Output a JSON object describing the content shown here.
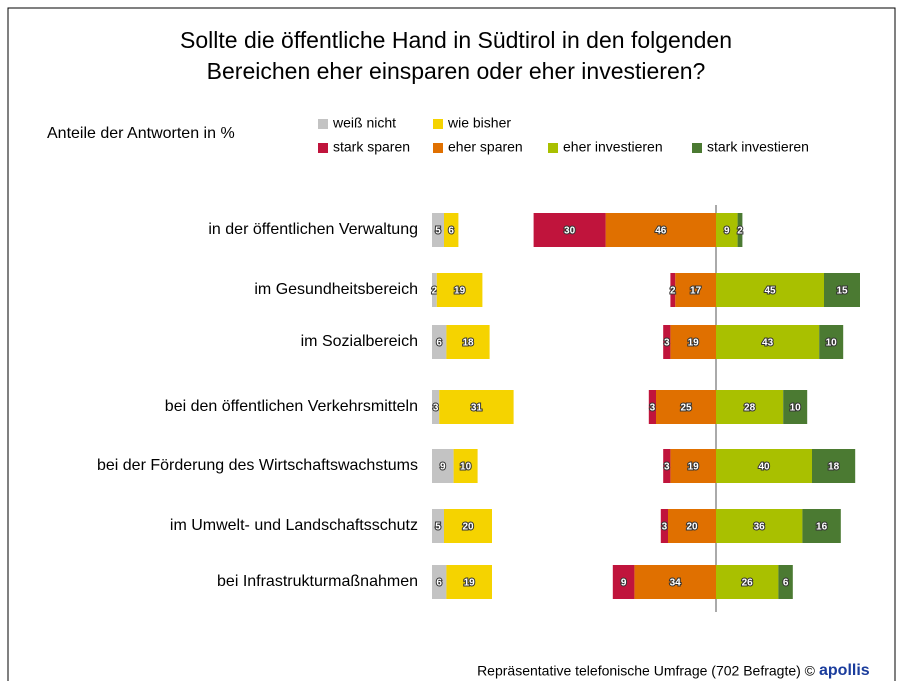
{
  "chart_data": {
    "type": "diverging-bar",
    "title": [
      "Sollte die öffentliche Hand in Südtirol in den folgenden",
      "Bereichen eher einsparen oder eher investieren?"
    ],
    "subtitle": "Anteile der Antworten in %",
    "source": "Repräsentative telefonische Umfrage (702 Befragte) ©",
    "logo": "apollis",
    "categories": [
      "in der öffentlichen Verwaltung",
      "im Gesundheitsbereich",
      "im Sozialbereich",
      "bei den öffentlichen Verkehrsmitteln",
      "bei der Förderung des Wirtschaftswachstums",
      "im Umwelt- und Landschaftsschutz",
      "bei Infrastrukturmaßnahmen"
    ],
    "series": [
      {
        "name": "weiß nicht",
        "color": "#c3c3c3",
        "values": [
          5,
          2,
          6,
          3,
          9,
          5,
          6
        ]
      },
      {
        "name": "wie bisher",
        "color": "#f5d300",
        "values": [
          6,
          19,
          18,
          31,
          10,
          20,
          19
        ]
      },
      {
        "name": "stark sparen",
        "color": "#c0143c",
        "values": [
          30,
          2,
          3,
          3,
          3,
          3,
          9
        ]
      },
      {
        "name": "eher sparen",
        "color": "#e07000",
        "values": [
          46,
          17,
          19,
          25,
          19,
          20,
          34
        ]
      },
      {
        "name": "eher investieren",
        "color": "#a9c000",
        "values": [
          9,
          45,
          43,
          28,
          40,
          36,
          26
        ]
      },
      {
        "name": "stark investieren",
        "color": "#4b7a32",
        "values": [
          2,
          15,
          10,
          10,
          18,
          16,
          6
        ]
      }
    ]
  }
}
